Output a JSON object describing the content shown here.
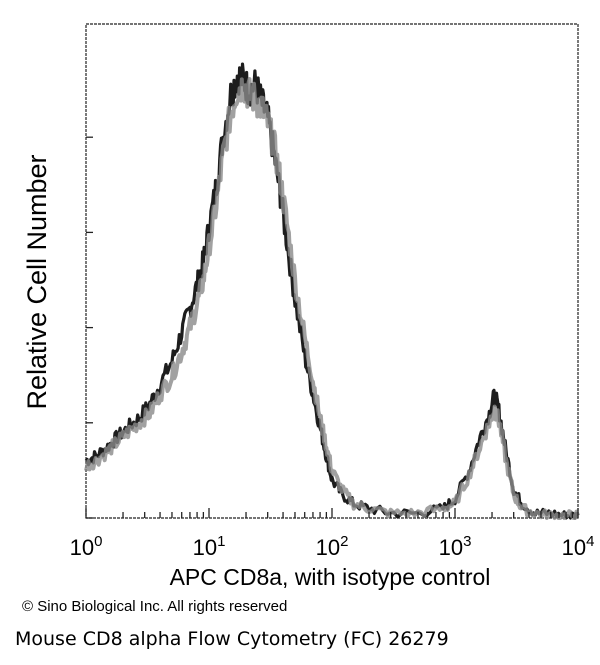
{
  "chart_data": {
    "type": "line",
    "title": "",
    "xlabel": "APC  CD8a,  with isotype control",
    "ylabel": "Relative Cell Number",
    "x_scale": "log",
    "xlim": [
      1,
      10000
    ],
    "ylim": [
      0,
      100
    ],
    "x_ticks": [
      {
        "base": "10",
        "exp": "0"
      },
      {
        "base": "10",
        "exp": "1"
      },
      {
        "base": "10",
        "exp": "2"
      },
      {
        "base": "10",
        "exp": "3"
      },
      {
        "base": "10",
        "exp": "4"
      }
    ],
    "grid": false,
    "legend": "none",
    "series": [
      {
        "color": "#111111",
        "x": [
          1,
          1.2,
          1.5,
          1.8,
          2.2,
          2.7,
          3.3,
          4,
          5,
          6,
          7,
          8,
          9,
          10,
          11.5,
          13,
          15,
          17,
          19,
          21,
          24,
          27,
          30,
          34,
          38,
          43,
          50,
          60,
          70,
          80,
          90,
          100,
          120,
          150,
          200,
          300,
          500,
          800,
          1000,
          1300,
          1600,
          1900,
          2100,
          2300,
          2600,
          3000,
          3500,
          4500,
          6000,
          8000,
          10000
        ],
        "y": [
          12,
          13,
          15,
          17,
          19,
          21,
          24,
          28,
          33,
          39,
          44,
          49,
          54,
          61,
          70,
          80,
          89,
          93,
          92,
          90,
          91,
          87,
          84,
          76,
          68,
          58,
          46,
          34,
          26,
          19,
          13,
          8,
          5,
          3,
          2,
          1,
          1,
          2,
          4,
          10,
          17,
          22,
          26,
          22,
          14,
          6,
          3,
          1,
          1,
          0.5,
          0.5
        ]
      },
      {
        "color": "#8a8a8a",
        "x": [
          1,
          1.2,
          1.5,
          1.8,
          2.2,
          2.7,
          3.3,
          4,
          5,
          6,
          7,
          8,
          9,
          10,
          11.5,
          13,
          15,
          17,
          19,
          21,
          24,
          27,
          30,
          34,
          38,
          43,
          50,
          60,
          70,
          80,
          90,
          100,
          120,
          150,
          200,
          300,
          500,
          800,
          1000,
          1300,
          1600,
          1900,
          2100,
          2300,
          2600,
          3000,
          3500,
          4500,
          6000,
          8000,
          10000
        ],
        "y": [
          11,
          12,
          14,
          16,
          18,
          20,
          22,
          26,
          30,
          35,
          40,
          45,
          50,
          57,
          66,
          76,
          85,
          90,
          91,
          89,
          88,
          86,
          83,
          78,
          71,
          62,
          50,
          38,
          29,
          21,
          15,
          10,
          6,
          3,
          2,
          1,
          1,
          2,
          3,
          9,
          15,
          20,
          23,
          20,
          12,
          5,
          2,
          1,
          0.5,
          0.5,
          0.5
        ]
      }
    ]
  },
  "footer": {
    "copyright": "© Sino Biological Inc. All rights reserved",
    "caption": "Mouse CD8 alpha Flow Cytometry (FC) 26279"
  }
}
